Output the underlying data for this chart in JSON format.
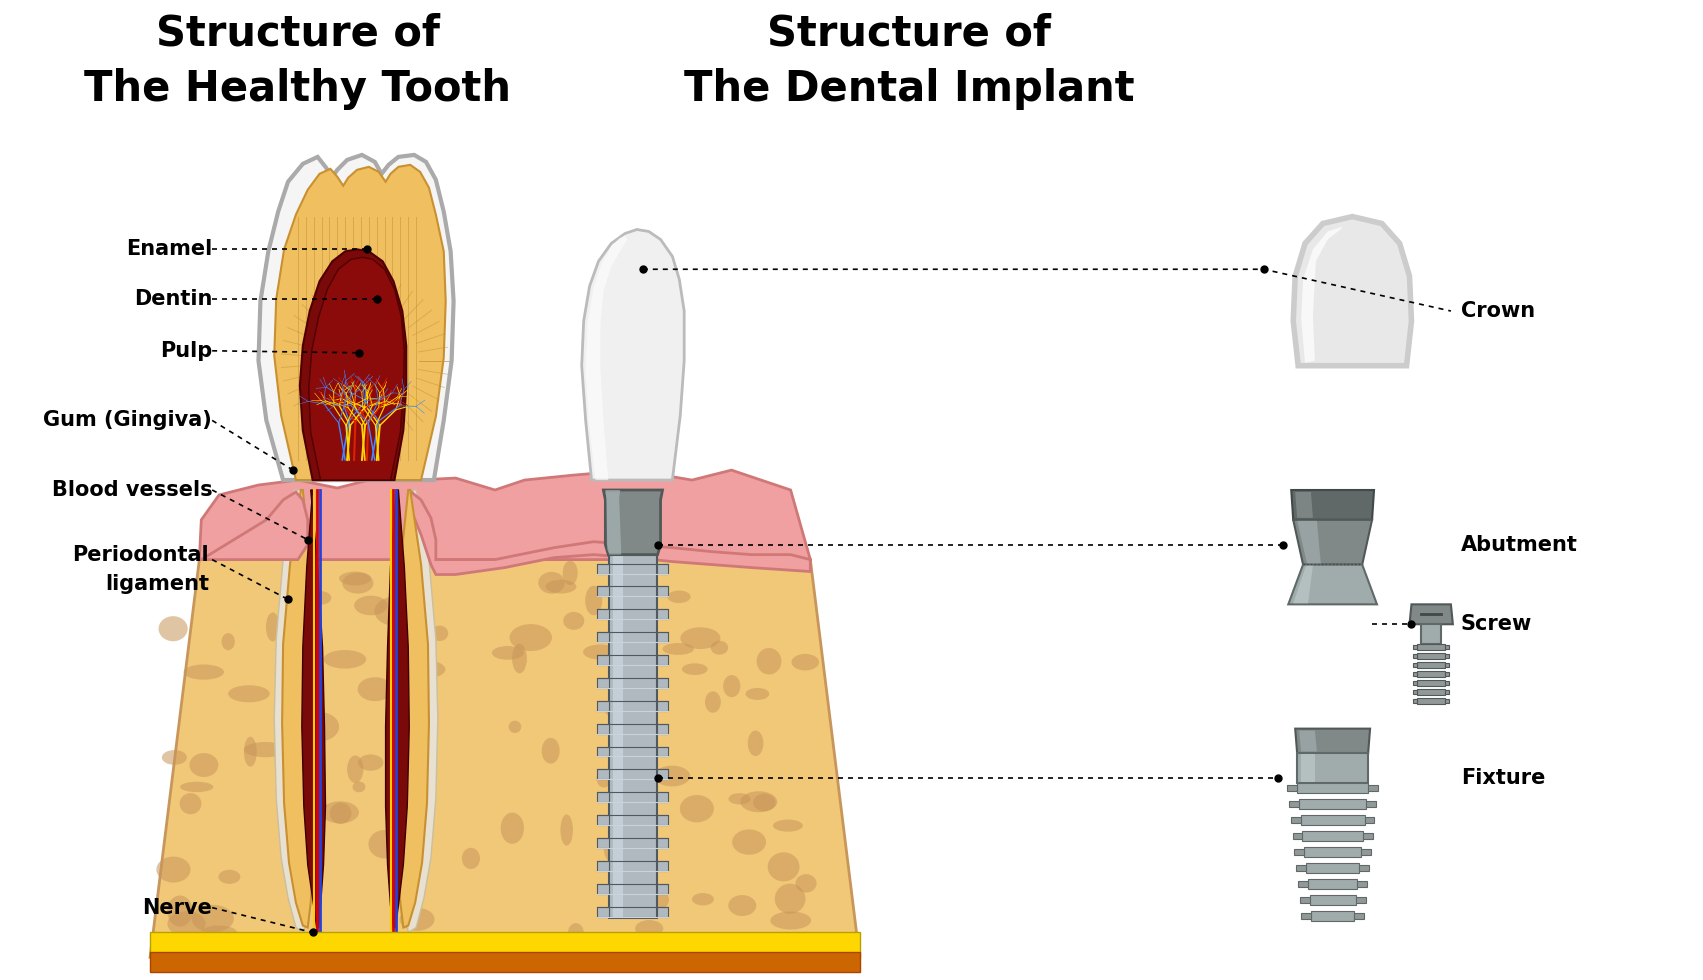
{
  "title_left": "Structure of\nThe Healthy Tooth",
  "title_right": "Structure of\nThe Dental Implant",
  "title_fontsize": 30,
  "bg_color": "#ffffff",
  "bone_color": "#F0C878",
  "bone_dark": "#C8965A",
  "gum_color": "#F0A0A0",
  "gum_edge": "#D07878",
  "tooth_white": "#F5F5F5",
  "tooth_gray": "#D8D8D8",
  "dentin_color": "#F0C060",
  "dentin_dark": "#C89030",
  "pulp_outer": "#7A0A0A",
  "pulp_inner": "#9B1515",
  "lig_color": "#F0E8D0",
  "labels_left": [
    "Enamel",
    "Dentin",
    "Pulp",
    "Gum (Gingiva)",
    "Blood vessels",
    "Periodontal\nligament",
    "Nerve"
  ],
  "labels_right": [
    "Crown",
    "Abutment",
    "Screw",
    "Fixture"
  ],
  "screw_color": "#909AA0",
  "screw_light": "#C8D4DC",
  "screw_dark": "#505860",
  "screw_mid": "#B0B8C0"
}
